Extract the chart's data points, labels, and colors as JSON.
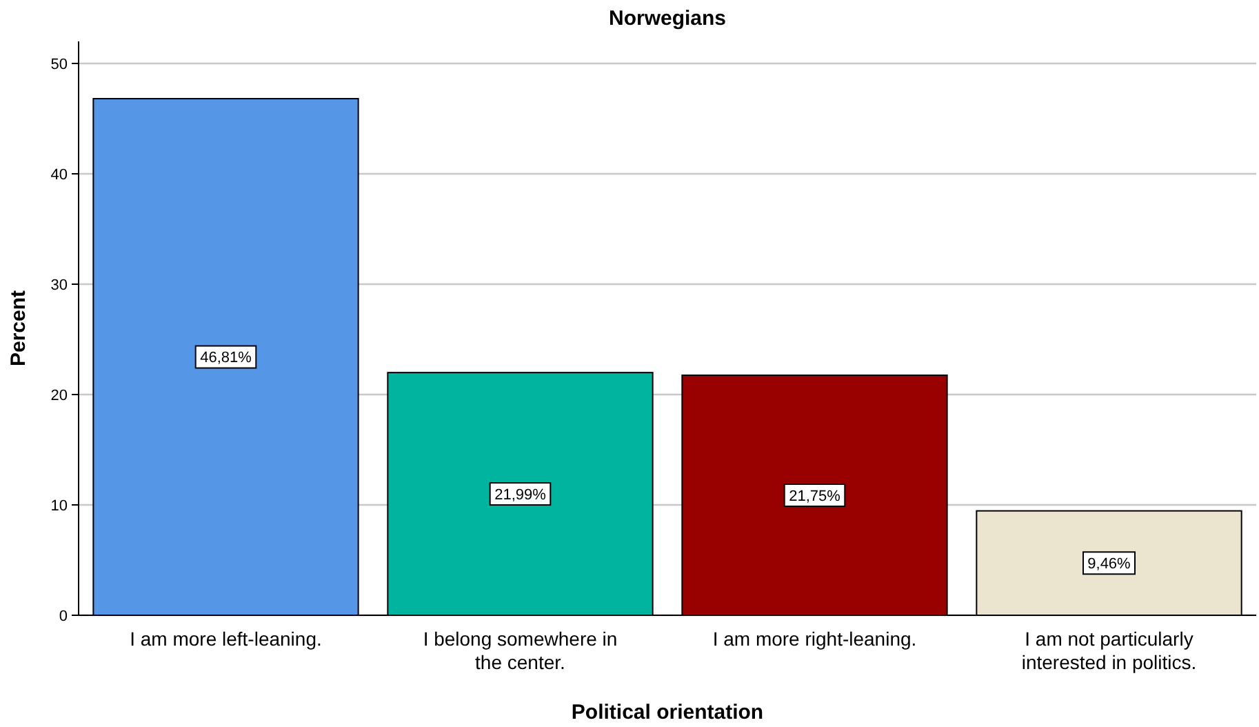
{
  "chart_data": {
    "type": "bar",
    "title": "Norwegians",
    "xlabel": "Political orientation",
    "ylabel": "Percent",
    "categories": [
      "I am more left-leaning.",
      "I belong somewhere in the center.",
      "I am more right-leaning.",
      "I am not particularly interested in politics."
    ],
    "values": [
      46.81,
      21.99,
      21.75,
      9.46
    ],
    "colors": [
      "#5596e6",
      "#00b4a0",
      "#990000",
      "#ebe4cf"
    ],
    "value_labels": [
      "46,81%",
      "21,99%",
      "21,75%",
      "9,46%"
    ],
    "ylim": [
      0,
      52
    ],
    "yticks": [
      0,
      10,
      20,
      30,
      40,
      50
    ],
    "grid": "y"
  }
}
